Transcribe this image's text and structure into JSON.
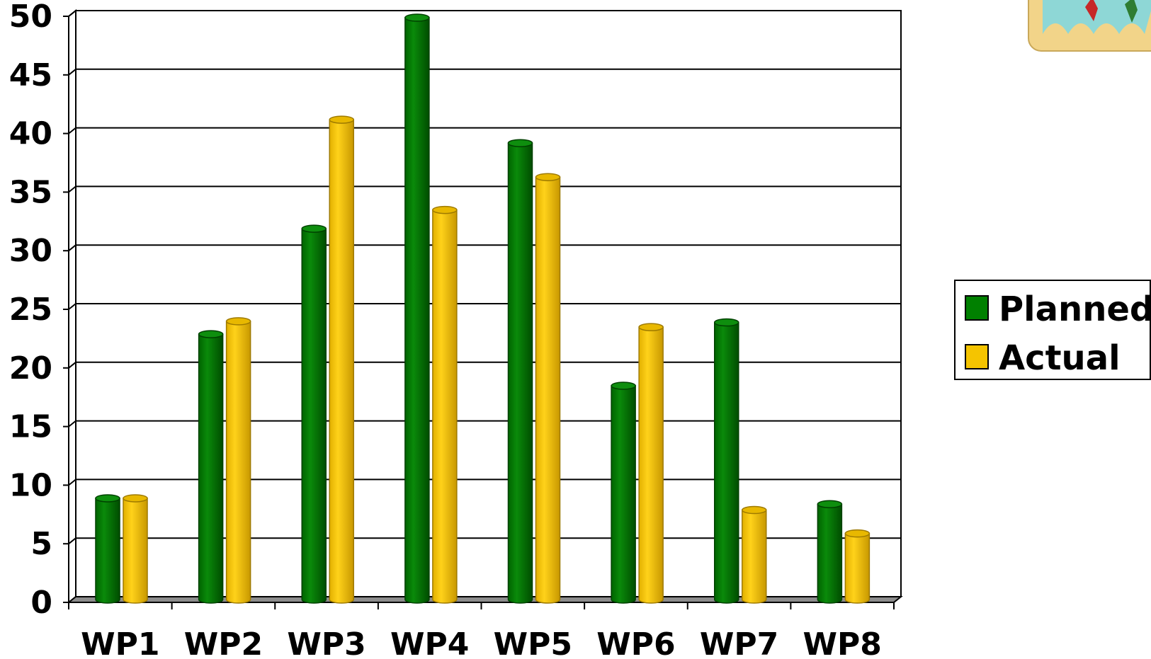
{
  "chart_data": {
    "type": "bar",
    "categories": [
      "WP1",
      "WP2",
      "WP3",
      "WP4",
      "WP5",
      "WP6",
      "WP7",
      "WP8"
    ],
    "series": [
      {
        "name": "Planned",
        "values": [
          9,
          23,
          32,
          50,
          39.3,
          18.6,
          24,
          8.5
        ],
        "color": "#008000"
      },
      {
        "name": "Actual",
        "values": [
          9,
          24.1,
          41.3,
          33.6,
          36.4,
          23.6,
          8,
          6
        ],
        "color": "#F5C400"
      }
    ],
    "y_ticks": [
      "0",
      "5",
      "10",
      "15",
      "20",
      "25",
      "30",
      "35",
      "40",
      "45",
      "50"
    ],
    "ylim": [
      0,
      50
    ],
    "grid": true,
    "legend_position": "right",
    "style": "3d-cylinder",
    "title": "",
    "xlabel": "",
    "ylabel": ""
  },
  "decoration": {
    "corner_image": "world-map-clipart"
  }
}
